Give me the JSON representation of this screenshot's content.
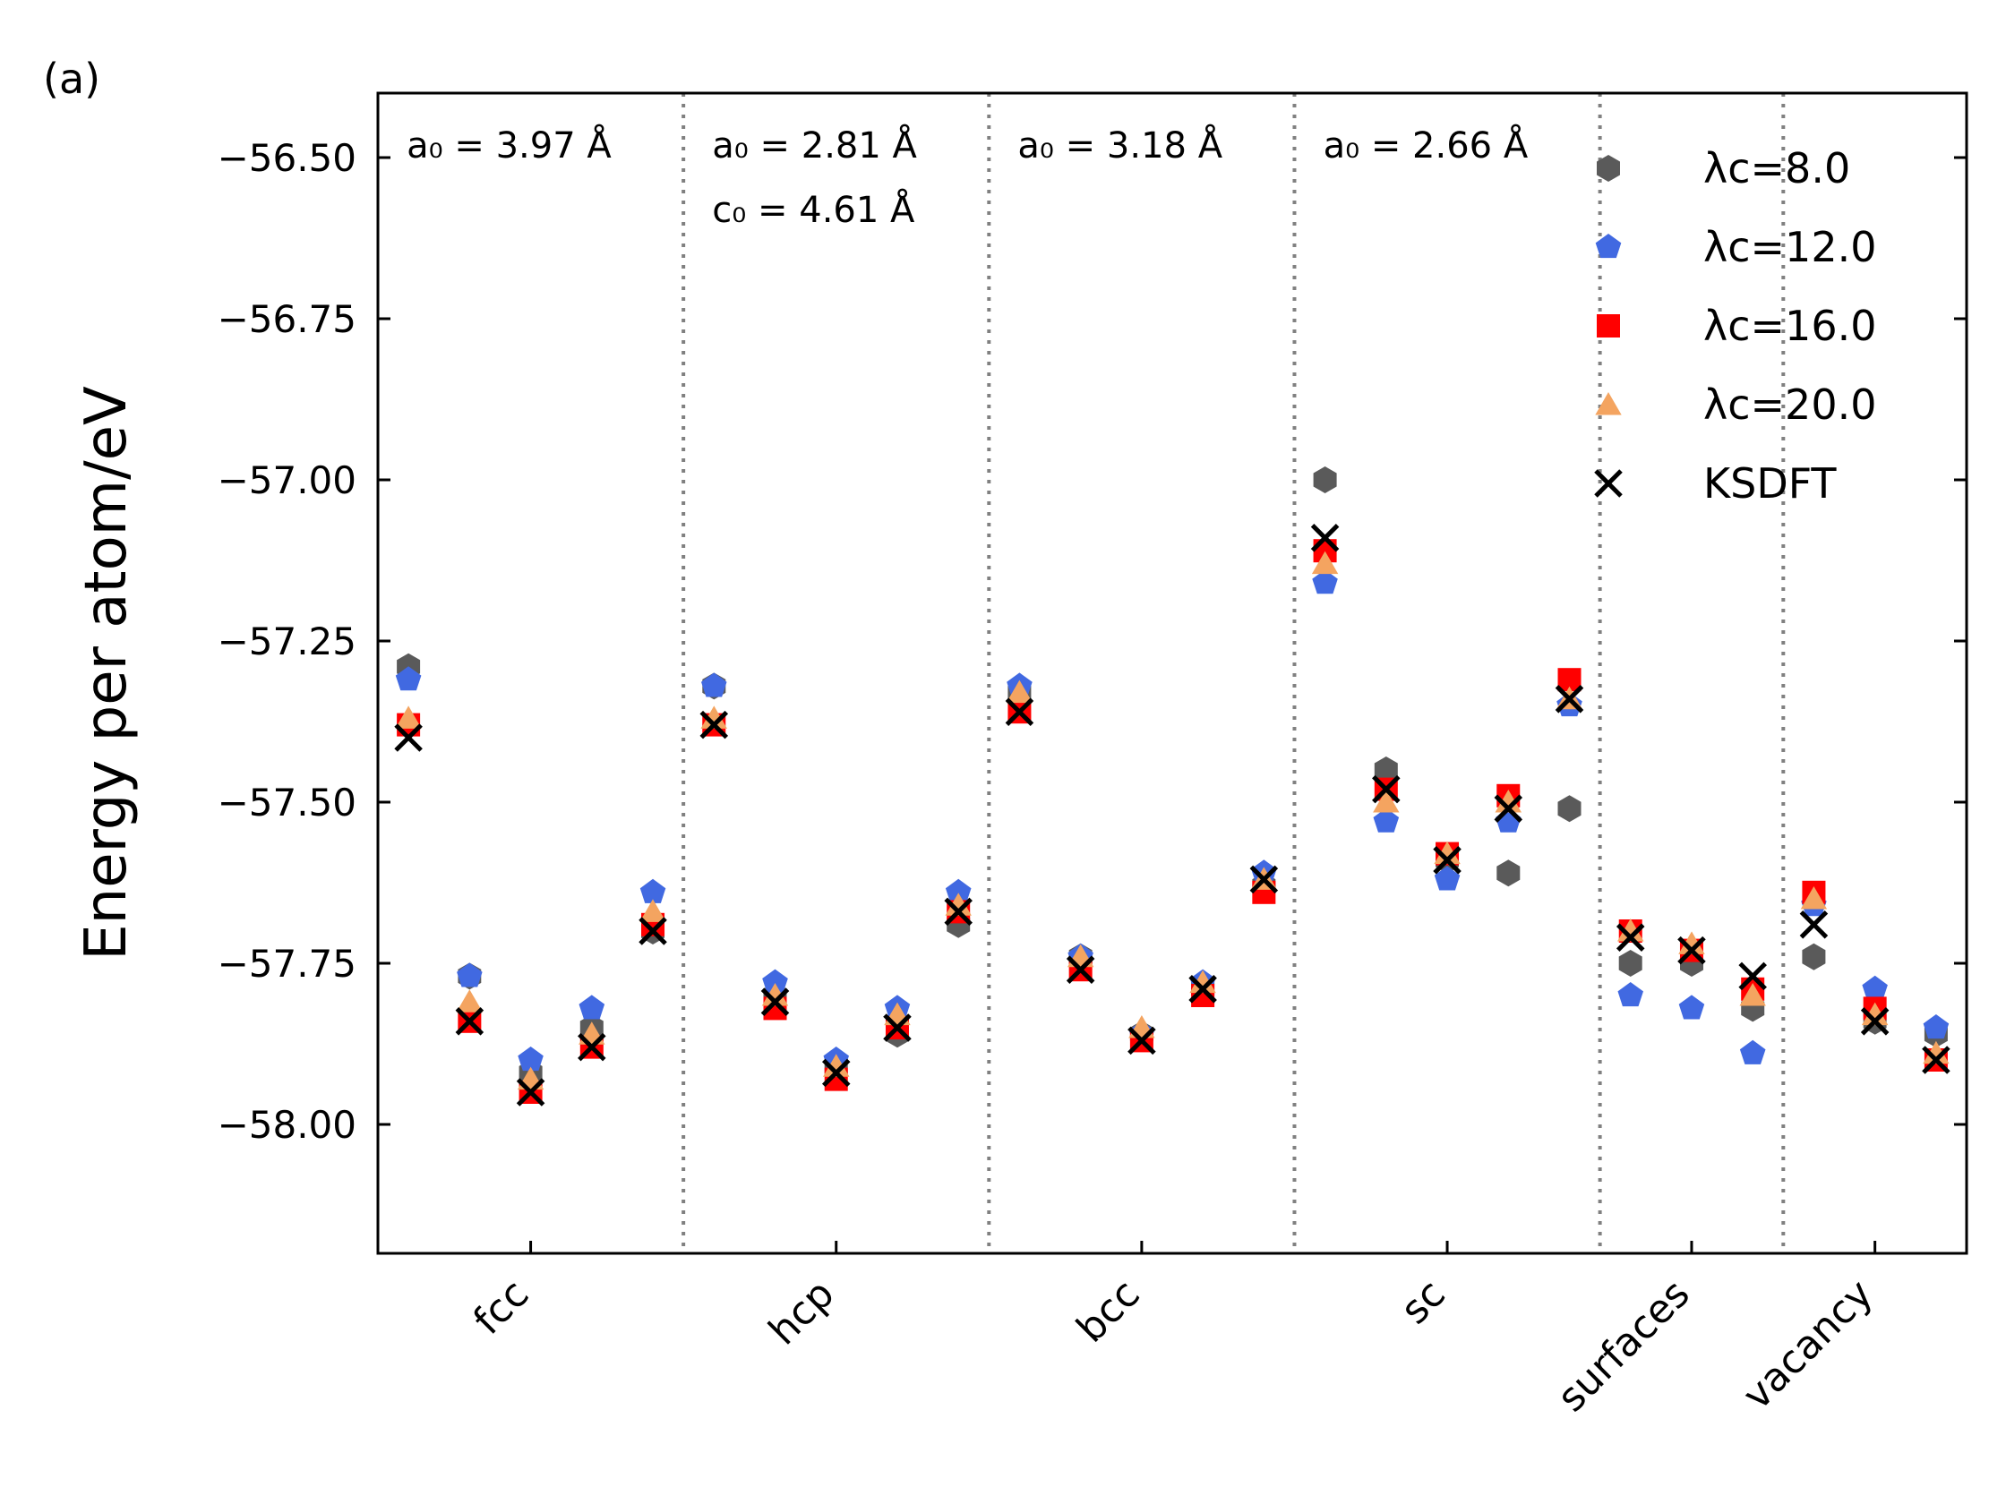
{
  "panel_label": "(a)",
  "chart_data": {
    "type": "scatter",
    "ylabel": "Energy per atom/eV",
    "xlabel": "",
    "ylim": [
      -58.2,
      -56.4
    ],
    "yticks": [
      -56.5,
      -56.75,
      -57.0,
      -57.25,
      -57.5,
      -57.75,
      -58.0
    ],
    "ytick_labels": [
      "−56.50",
      "−56.75",
      "−57.00",
      "−57.25",
      "−57.50",
      "−57.75",
      "−58.00"
    ],
    "xlim": [
      0.5,
      26.5
    ],
    "categories": [
      {
        "label": "fcc",
        "x": 3
      },
      {
        "label": "hcp",
        "x": 8
      },
      {
        "label": "bcc",
        "x": 13
      },
      {
        "label": "sc",
        "x": 18
      },
      {
        "label": "surfaces",
        "x": 22
      },
      {
        "label": "vacancy",
        "x": 25
      }
    ],
    "separators": [
      5.5,
      10.5,
      15.5,
      20.5,
      23.5
    ],
    "annotations": [
      {
        "lines": [
          "a₀ = 3.97 Å"
        ],
        "x_data": 1.0
      },
      {
        "lines": [
          "a₀ = 2.81 Å",
          "c₀ = 4.61 Å"
        ],
        "x_data": 6.0
      },
      {
        "lines": [
          "a₀ = 3.18 Å"
        ],
        "x_data": 11.0
      },
      {
        "lines": [
          "a₀ = 2.66 Å"
        ],
        "x_data": 16.0
      }
    ],
    "x": [
      1,
      2,
      3,
      4,
      5,
      6,
      7,
      8,
      9,
      10,
      11,
      12,
      13,
      14,
      15,
      16,
      17,
      18,
      19,
      20,
      21,
      22,
      23,
      24,
      25,
      26
    ],
    "legend_position": "top-right",
    "series": [
      {
        "name": "λc=8.0",
        "marker": "hexagon",
        "color": "#5a5a5a",
        "values": [
          -57.29,
          -57.77,
          -57.92,
          -57.85,
          -57.7,
          -57.32,
          -57.8,
          -57.91,
          -57.86,
          -57.69,
          -57.33,
          -57.74,
          -57.86,
          -57.79,
          -57.63,
          -57.0,
          -57.45,
          -57.59,
          -57.61,
          -57.51,
          -57.75,
          -57.75,
          -57.82,
          -57.74,
          -57.84,
          -57.86
        ]
      },
      {
        "name": "λc=12.0",
        "marker": "pentagon",
        "color": "#4169e1",
        "values": [
          -57.31,
          -57.77,
          -57.9,
          -57.82,
          -57.64,
          -57.32,
          -57.78,
          -57.9,
          -57.82,
          -57.64,
          -57.32,
          -57.74,
          -57.86,
          -57.78,
          -57.61,
          -57.16,
          -57.53,
          -57.62,
          -57.53,
          -57.35,
          -57.8,
          -57.82,
          -57.89,
          -57.66,
          -57.79,
          -57.85
        ]
      },
      {
        "name": "λc=16.0",
        "marker": "square",
        "color": "#ff0000",
        "values": [
          -57.38,
          -57.84,
          -57.95,
          -57.88,
          -57.69,
          -57.38,
          -57.82,
          -57.93,
          -57.85,
          -57.67,
          -57.36,
          -57.76,
          -57.87,
          -57.8,
          -57.64,
          -57.11,
          -57.48,
          -57.58,
          -57.49,
          -57.31,
          -57.7,
          -57.73,
          -57.79,
          -57.64,
          -57.82,
          -57.9
        ]
      },
      {
        "name": "λc=20.0",
        "marker": "triangle",
        "color": "#f4a460",
        "values": [
          -57.37,
          -57.81,
          -57.93,
          -57.86,
          -57.67,
          -57.37,
          -57.8,
          -57.91,
          -57.83,
          -57.66,
          -57.33,
          -57.74,
          -57.85,
          -57.78,
          -57.62,
          -57.13,
          -57.5,
          -57.58,
          -57.5,
          -57.34,
          -57.7,
          -57.72,
          -57.8,
          -57.65,
          -57.83,
          -57.89
        ]
      },
      {
        "name": "KSDFT",
        "marker": "x",
        "color": "#000000",
        "values": [
          -57.4,
          -57.84,
          -57.95,
          -57.88,
          -57.7,
          -57.38,
          -57.81,
          -57.92,
          -57.85,
          -57.67,
          -57.36,
          -57.76,
          -57.87,
          -57.79,
          -57.62,
          -57.09,
          -57.48,
          -57.59,
          -57.51,
          -57.34,
          -57.71,
          -57.73,
          -57.77,
          -57.69,
          -57.84,
          -57.9
        ]
      }
    ]
  }
}
